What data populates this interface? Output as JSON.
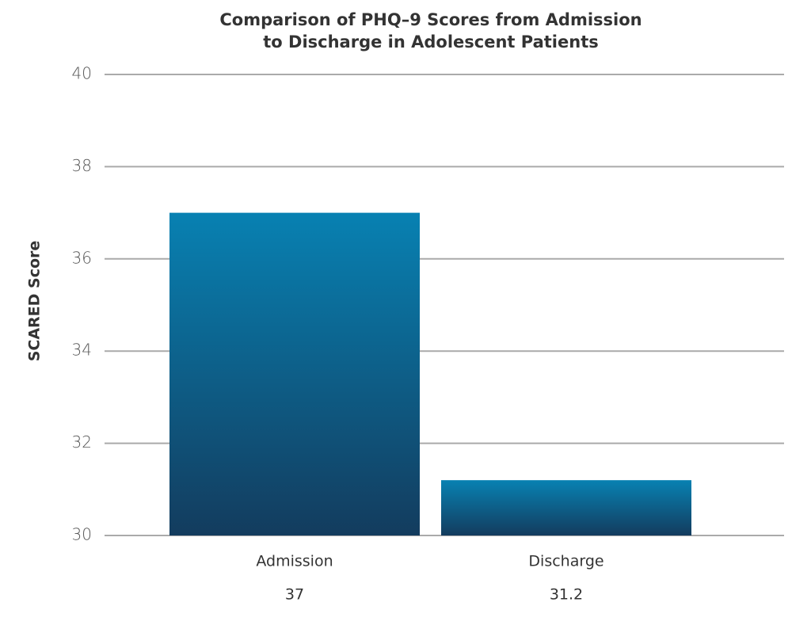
{
  "chart_data": {
    "type": "bar",
    "title": [
      "Comparison of PHQ–9 Scores from Admission",
      "to Discharge in Adolescent Patients"
    ],
    "y_label": "SCARED Score",
    "categories": [
      "Admission",
      "Discharge"
    ],
    "values": [
      37,
      31.2
    ],
    "gradient": [
      "#0881b2",
      "#133c5e"
    ],
    "ylim": [
      30,
      40
    ],
    "yticks": [
      30,
      32,
      34,
      36,
      38,
      40
    ],
    "grid": true
  }
}
